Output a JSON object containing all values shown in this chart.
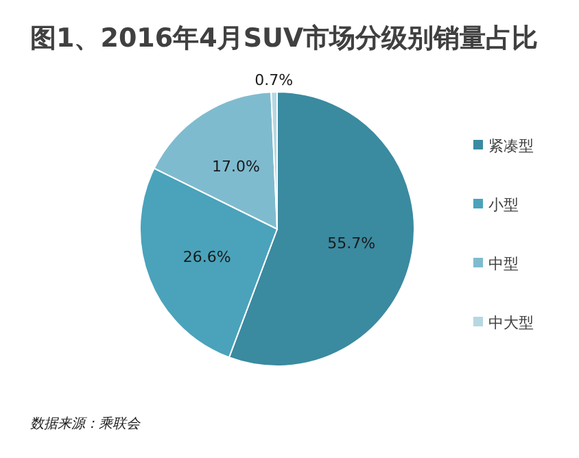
{
  "chart_data": {
    "type": "pie",
    "title": "图1、2016年4月SUV市场分级别销量占比",
    "categories": [
      "紧凑型",
      "小型",
      "中型",
      "中大型"
    ],
    "values": [
      55.7,
      26.6,
      17.0,
      0.7
    ],
    "value_labels": [
      "55.7%",
      "26.6%",
      "17.0%",
      "0.7%"
    ],
    "colors": [
      "#3a8aa0",
      "#4aa3bb",
      "#7fbbcf",
      "#b7d7e1"
    ],
    "legend": "right",
    "annotations": [
      "数据来源：乘联会"
    ]
  }
}
